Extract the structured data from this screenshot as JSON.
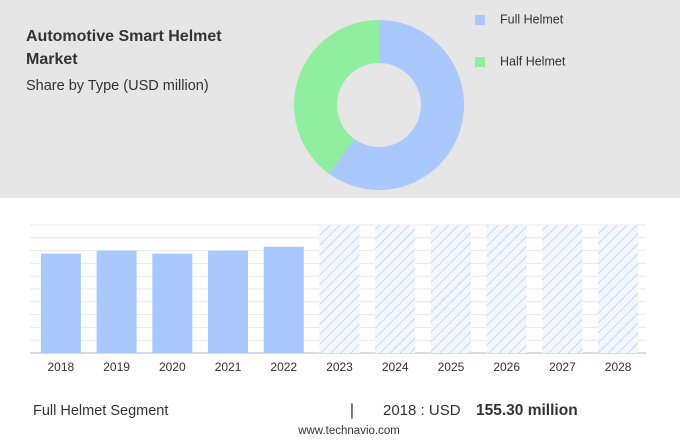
{
  "chart_data": [
    {
      "type": "pie",
      "title": "Automotive Smart Helmet Market",
      "subtitle": "Share by Type (USD million)",
      "categories": [
        "Full Helmet",
        "Half Helmet"
      ],
      "values": [
        60,
        40
      ],
      "colors": [
        "#a9c8fb",
        "#90ee9f"
      ]
    },
    {
      "type": "bar",
      "categories": [
        "2018",
        "2019",
        "2020",
        "2021",
        "2022",
        "2023",
        "2024",
        "2025",
        "2026",
        "2027",
        "2028"
      ],
      "values": [
        155.3,
        160,
        155.3,
        160,
        166,
        null,
        null,
        null,
        null,
        null,
        null
      ],
      "color": "#a9c8fb",
      "ylim": [
        0,
        200
      ]
    }
  ],
  "footer": {
    "segment": "Full Helmet Segment",
    "separator": "|",
    "year_label": "2018 : USD",
    "value_label": "155.30 million"
  },
  "source": "www.technavio.com"
}
